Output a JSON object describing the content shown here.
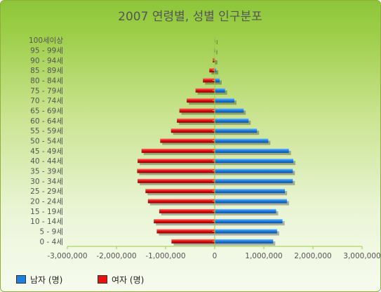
{
  "chart_data": {
    "type": "bar",
    "orientation": "horizontal",
    "title": "2007 연령별, 성별 인구분포",
    "categories": [
      "0 - 4세",
      "5 - 9세",
      "10 - 14세",
      "15 - 19세",
      "20 - 24세",
      "25 - 29세",
      "30 - 34세",
      "35 - 39세",
      "40 - 44세",
      "45 - 49세",
      "50 - 54세",
      "55 - 59세",
      "60 - 64세",
      "65 - 69세",
      "70 - 74세",
      "75 - 79세",
      "80 - 84세",
      "85 - 89세",
      "90 - 94세",
      "95 - 99세",
      "100세이상"
    ],
    "series": [
      {
        "name": "남자 (명)",
        "color": "#1f7fe0",
        "values": [
          1190000,
          1270000,
          1380000,
          1250000,
          1470000,
          1430000,
          1590000,
          1590000,
          1600000,
          1510000,
          1090000,
          860000,
          690000,
          590000,
          400000,
          210000,
          100000,
          30000,
          10000,
          3000,
          1000
        ]
      },
      {
        "name": "여자 (명)",
        "color": "#e81010",
        "values": [
          -880000,
          -1180000,
          -1240000,
          -1130000,
          -1360000,
          -1410000,
          -1570000,
          -1580000,
          -1570000,
          -1490000,
          -1110000,
          -890000,
          -770000,
          -720000,
          -570000,
          -390000,
          -240000,
          -110000,
          -40000,
          -10000,
          -3000
        ]
      }
    ],
    "xlim": [
      -3000000,
      3000000
    ],
    "xticks": [
      -3000000,
      -2000000,
      -1000000,
      0,
      1000000,
      2000000,
      3000000
    ],
    "xtick_labels": [
      "-3,000,000",
      "-2,000,000",
      "-1,000,000",
      "0",
      "1,000,000",
      "2,000,000",
      "3,000,000"
    ],
    "xlabel": "",
    "ylabel": "",
    "grid": false,
    "legend_position": "bottom-left",
    "axis_color": "#9ccc44",
    "label_color": "#555555",
    "title_color": "#555555"
  }
}
